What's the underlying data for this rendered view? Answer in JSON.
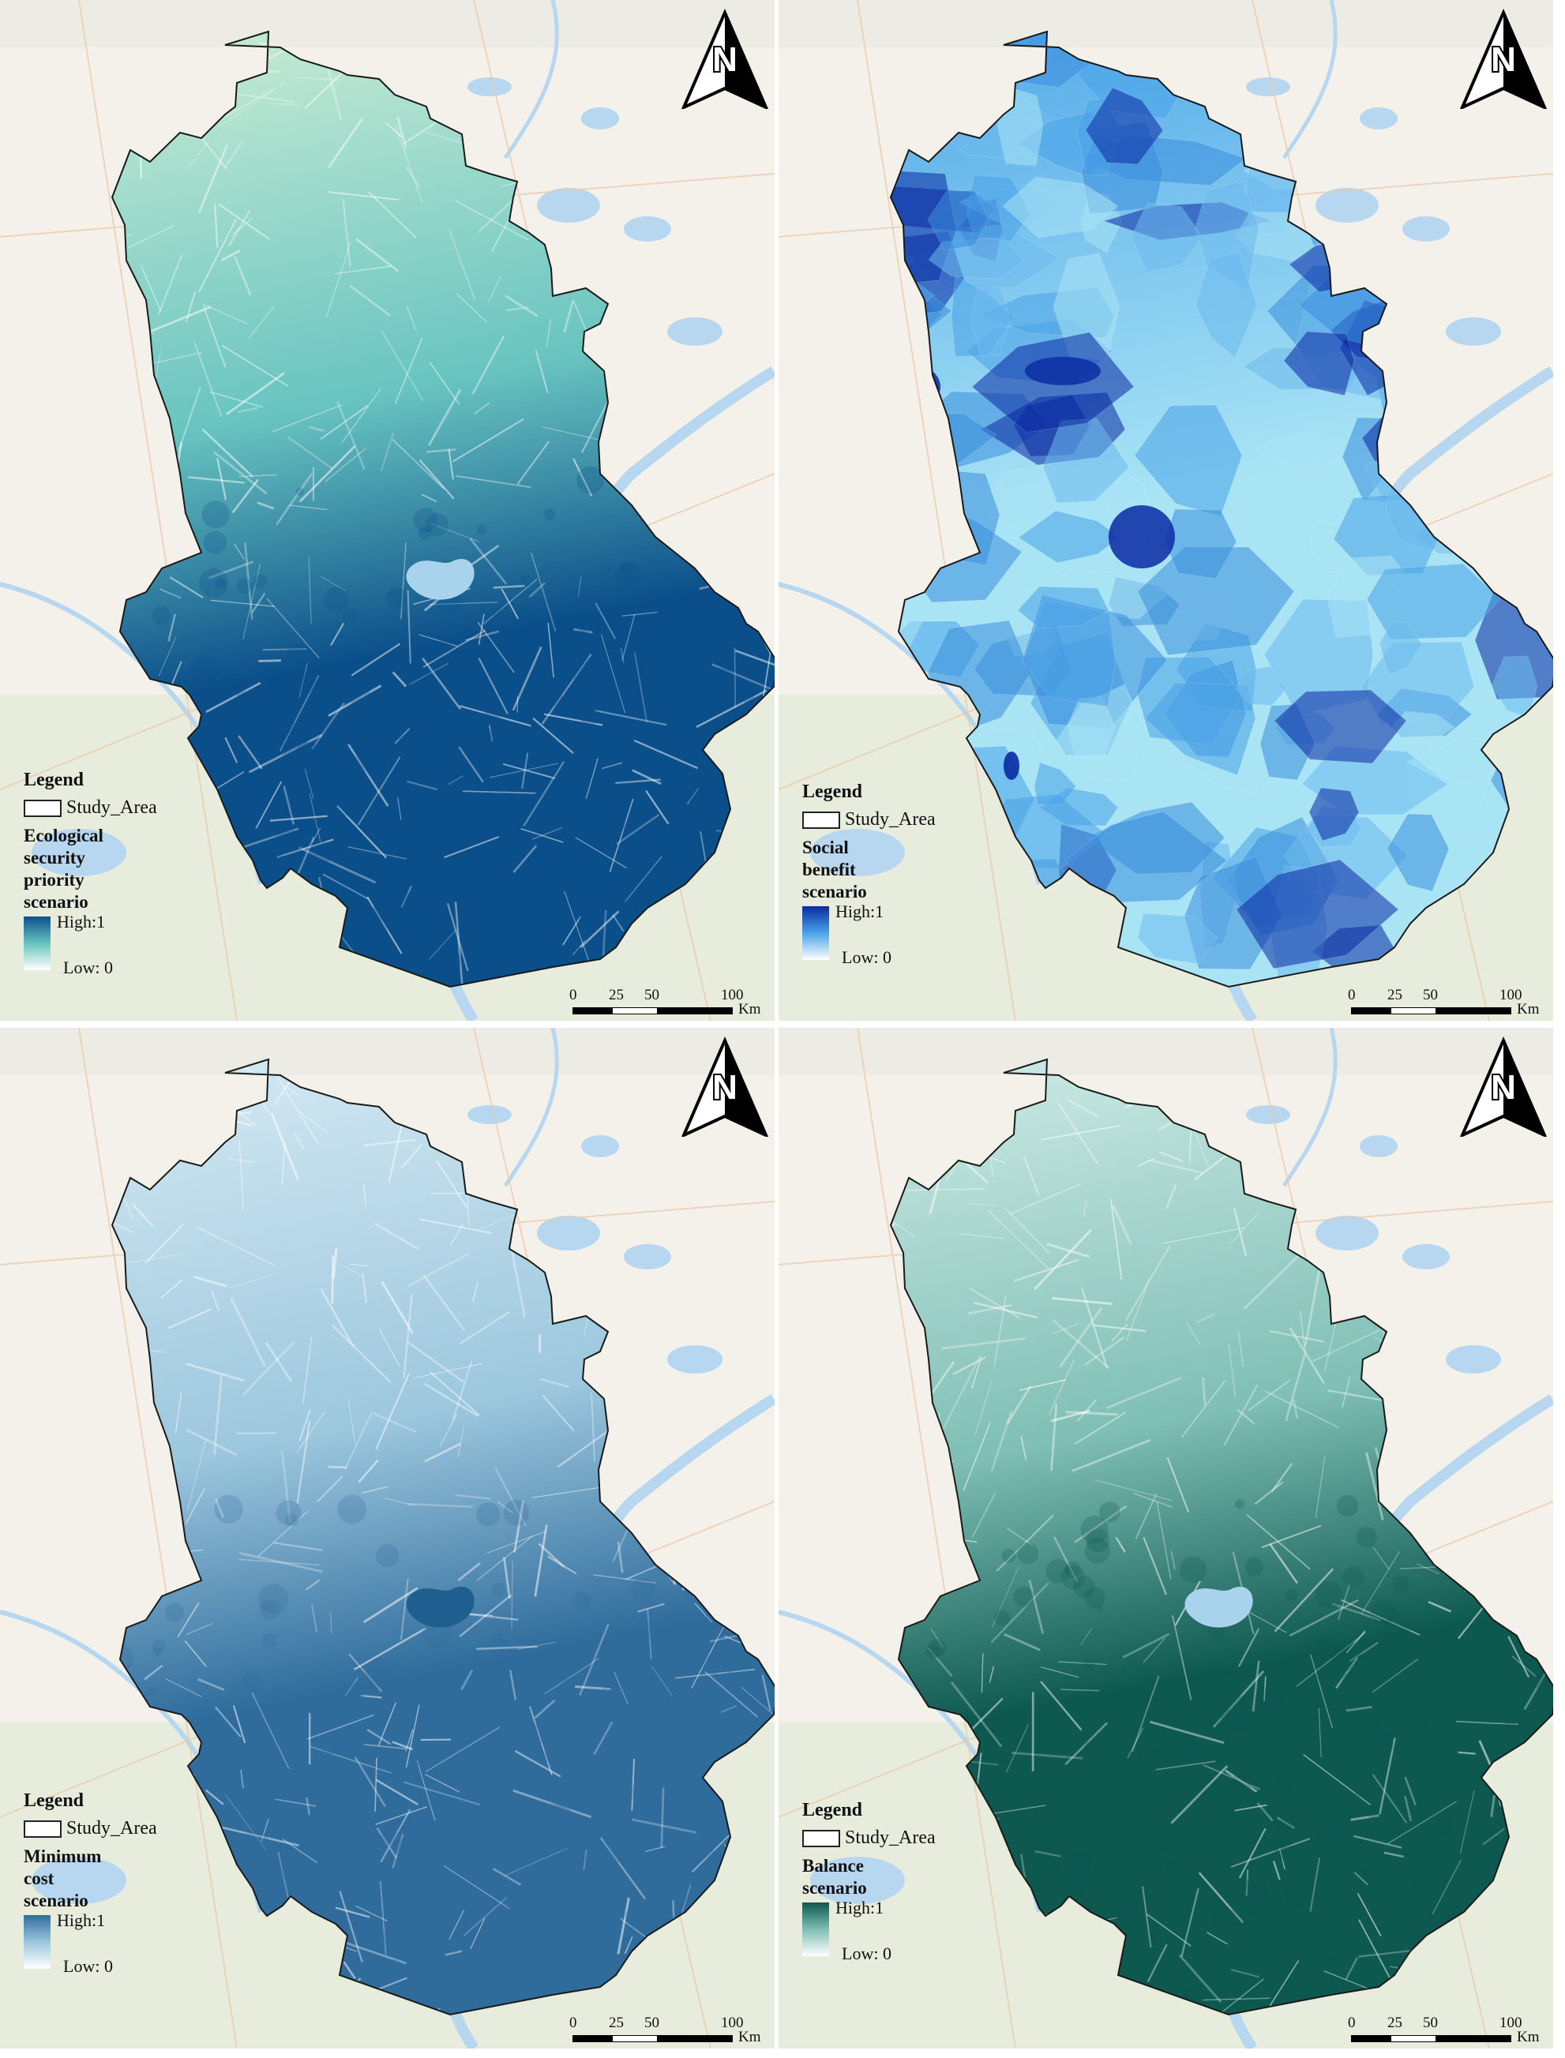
{
  "legend_title": "Legend",
  "boundary_label": "Study_Area",
  "north_letter": "N",
  "scalebar": {
    "ticks": [
      "0",
      "25",
      "50",
      "100"
    ],
    "unit": "Km"
  },
  "panels": [
    {
      "id": "ecological",
      "scenario_lines": [
        "Ecological",
        "security",
        "priority",
        "scenario"
      ],
      "high_label": "High:1",
      "low_label": "Low: 0",
      "colors": {
        "low": "#d7f2d7",
        "mid": "#68c4c0",
        "high": "#0b4f8a"
      }
    },
    {
      "id": "social",
      "scenario_lines": [
        "Social",
        "benefit",
        "scenario"
      ],
      "high_label": "High:1",
      "low_label": "Low: 0",
      "colors": {
        "low": "#a9e4f5",
        "mid": "#4aa3e8",
        "high": "#0a2aa3"
      }
    },
    {
      "id": "minimum-cost",
      "scenario_lines": [
        "Minimum",
        "cost",
        "scenario"
      ],
      "high_label": "High:1",
      "low_label": "Low: 0",
      "colors": {
        "low": "#dceef5",
        "mid": "#9cc7de",
        "high": "#2f6c9c"
      }
    },
    {
      "id": "balance",
      "scenario_lines": [
        "Balance",
        "scenario"
      ],
      "high_label": "High:1",
      "low_label": "Low: 0",
      "colors": {
        "low": "#d8f0ec",
        "mid": "#7fbfb5",
        "high": "#0d5950"
      }
    }
  ]
}
